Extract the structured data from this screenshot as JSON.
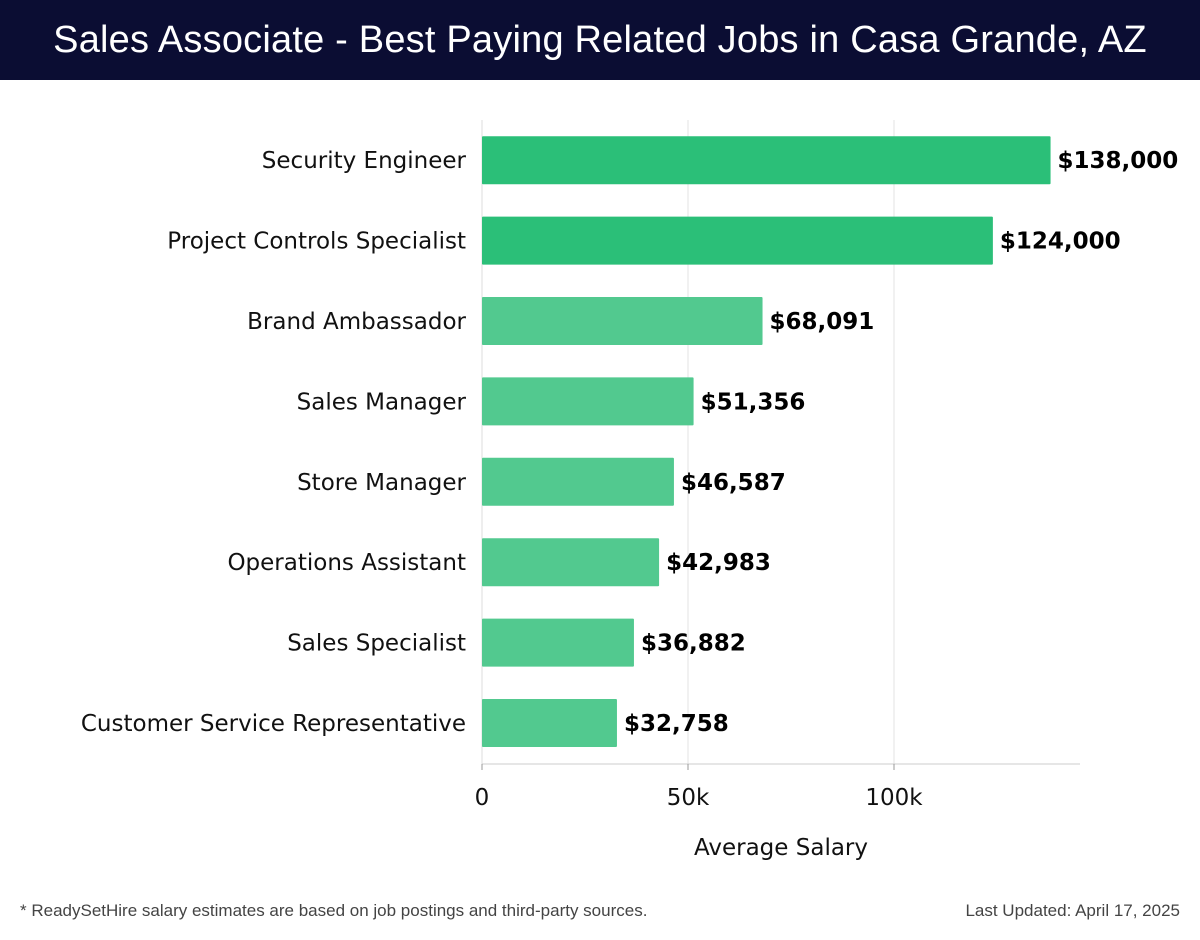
{
  "header": {
    "title": "Sales Associate - Best Paying Related Jobs in Casa Grande, AZ"
  },
  "chart_data": {
    "type": "bar",
    "orientation": "horizontal",
    "title": "Sales Associate - Best Paying Related Jobs in Casa Grande, AZ",
    "categories": [
      "Security Engineer",
      "Project Controls Specialist",
      "Brand Ambassador",
      "Sales Manager",
      "Store Manager",
      "Operations Assistant",
      "Sales Specialist",
      "Customer Service Representative"
    ],
    "values": [
      138000,
      124000,
      68091,
      51356,
      46587,
      42983,
      36882,
      32758
    ],
    "value_labels": [
      "$138,000",
      "$124,000",
      "$68,091",
      "$51,356",
      "$46,587",
      "$42,983",
      "$36,882",
      "$32,758"
    ],
    "xlabel": "Average Salary",
    "ylabel": "",
    "xlim": [
      0,
      145000
    ],
    "xticks": [
      0,
      50000,
      100000
    ],
    "xtick_labels": [
      "0",
      "50k",
      "100k"
    ],
    "grid": true,
    "colors": {
      "top": "#2bbf78",
      "rest": "#52c98f"
    }
  },
  "footer": {
    "note": "* ReadySetHire salary estimates are based on job postings and third-party sources.",
    "updated": "Last Updated: April 17, 2025"
  }
}
